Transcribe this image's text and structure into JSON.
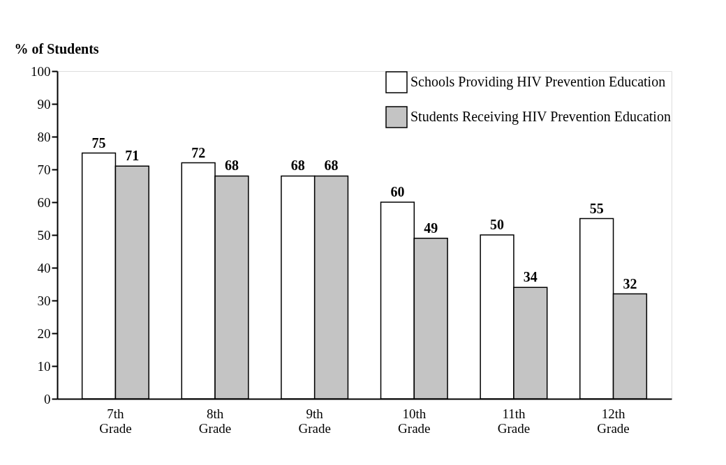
{
  "chart_data": {
    "type": "bar",
    "ylabel": "% of Students",
    "categories": [
      "7th Grade",
      "8th Grade",
      "9th Grade",
      "10th Grade",
      "11th Grade",
      "12th Grade"
    ],
    "series": [
      {
        "name": "Schools Providing HIV Prevention Education",
        "color": "#ffffff",
        "values": [
          75,
          72,
          68,
          60,
          50,
          55
        ]
      },
      {
        "name": "Students Receiving HIV Prevention Education",
        "color": "#c4c4c4",
        "values": [
          71,
          68,
          68,
          49,
          34,
          32
        ]
      }
    ],
    "ylim": [
      0,
      100
    ],
    "yticks": [
      0,
      10,
      20,
      30,
      40,
      50,
      60,
      70,
      80,
      90,
      100
    ],
    "data_labels": true,
    "grid": false,
    "legend": "top right"
  }
}
